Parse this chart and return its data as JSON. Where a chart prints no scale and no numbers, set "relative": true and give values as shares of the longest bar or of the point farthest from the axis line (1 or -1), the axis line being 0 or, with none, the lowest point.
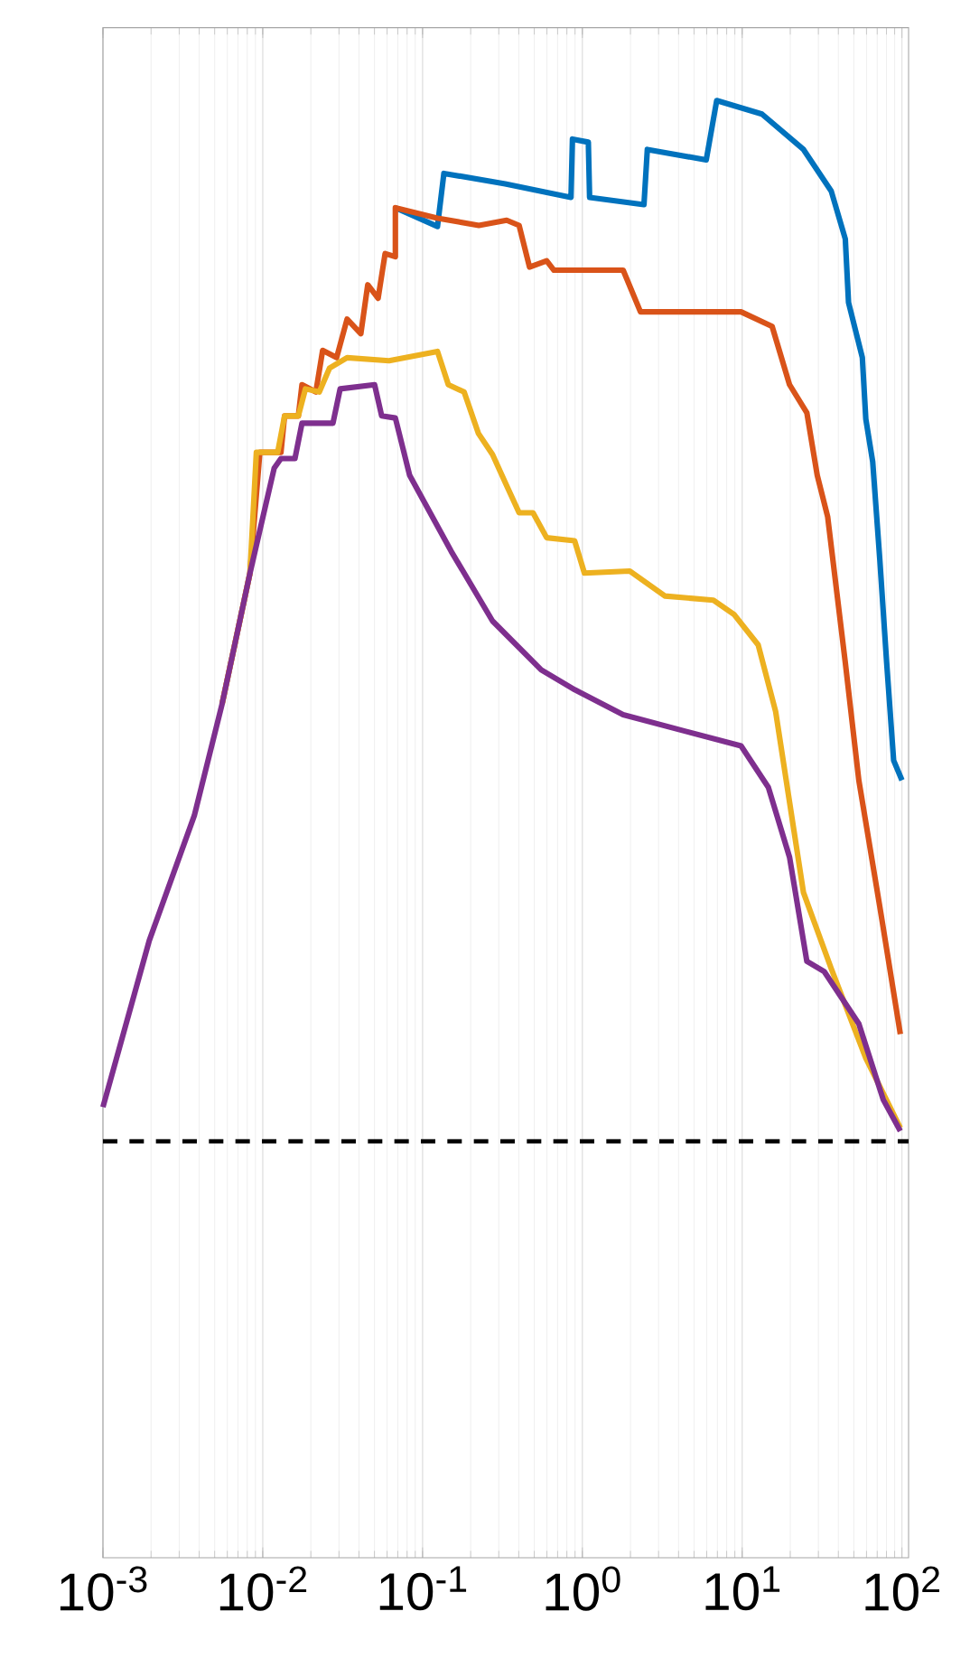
{
  "chart_data": {
    "type": "line",
    "relative": true,
    "log": "x",
    "grid": "x",
    "tick_labels": "x",
    "line_style": "solid",
    "xlim": [
      0.001,
      110
    ],
    "xticks": [
      {
        "value": 0.001,
        "label": "10$^{-3}$"
      },
      {
        "value": 0.01,
        "label": "10$^{-2}$"
      },
      {
        "value": 0.1,
        "label": "10$^{-1}$"
      },
      {
        "value": 1,
        "label": "10$^{0}$"
      },
      {
        "value": 10,
        "label": "10$^{1}$"
      },
      {
        "value": 100,
        "label": "10$^{2}$"
      }
    ],
    "ref_lines": [
      {
        "axis": "y",
        "value": 0,
        "color": "#000000",
        "line_style": "dashed"
      }
    ],
    "series": [
      {
        "color": "#0072bd",
        "x": [
          0.0676,
          0.124,
          0.136,
          0.329,
          0.849,
          0.867,
          1.09,
          1.11,
          2.43,
          2.55,
          5.96,
          6.93,
          13.3,
          24.2,
          36.1,
          44.2,
          46.3,
          56.5,
          59.4,
          65.6,
          72.6,
          80.2,
          88.7,
          100
        ],
        "values": [
          0.897,
          0.879,
          0.93,
          0.92,
          0.907,
          0.963,
          0.96,
          0.907,
          0.9,
          0.953,
          0.943,
          1.0,
          0.987,
          0.953,
          0.913,
          0.867,
          0.806,
          0.753,
          0.694,
          0.653,
          0.56,
          0.46,
          0.366,
          0.347
        ]
      },
      {
        "color": "#d95319",
        "x": [
          0.00556,
          0.00832,
          0.00959,
          0.013,
          0.0137,
          0.0167,
          0.0176,
          0.0215,
          0.0237,
          0.029,
          0.0337,
          0.0411,
          0.0454,
          0.0527,
          0.0583,
          0.0676,
          0.0676,
          0.124,
          0.225,
          0.336,
          0.402,
          0.467,
          0.598,
          0.664,
          1.8,
          2.31,
          9.84,
          15.4,
          19.8,
          25.4,
          29.5,
          34.3,
          44.2,
          53.7,
          72.6,
          97.7
        ],
        "values": [
          0.42,
          0.546,
          0.662,
          0.662,
          0.697,
          0.697,
          0.727,
          0.72,
          0.76,
          0.753,
          0.79,
          0.776,
          0.823,
          0.81,
          0.853,
          0.85,
          0.897,
          0.887,
          0.88,
          0.885,
          0.88,
          0.84,
          0.846,
          0.837,
          0.837,
          0.797,
          0.797,
          0.783,
          0.727,
          0.7,
          0.64,
          0.6,
          0.46,
          0.347,
          0.226,
          0.103
        ]
      },
      {
        "color": "#edb120",
        "x": [
          0.00556,
          0.00832,
          0.00912,
          0.0124,
          0.0137,
          0.0167,
          0.0185,
          0.0226,
          0.0262,
          0.0337,
          0.0617,
          0.124,
          0.145,
          0.182,
          0.224,
          0.274,
          0.336,
          0.402,
          0.491,
          0.598,
          0.895,
          1.03,
          1.98,
          3.28,
          6.61,
          8.93,
          12.6,
          16.2,
          19.8,
          24.2,
          36.1,
          59.4,
          97.7
        ],
        "values": [
          0.42,
          0.546,
          0.662,
          0.662,
          0.697,
          0.697,
          0.723,
          0.72,
          0.743,
          0.753,
          0.75,
          0.759,
          0.727,
          0.72,
          0.68,
          0.66,
          0.63,
          0.604,
          0.604,
          0.58,
          0.577,
          0.546,
          0.548,
          0.524,
          0.52,
          0.506,
          0.477,
          0.413,
          0.326,
          0.239,
          0.166,
          0.08,
          0.013
        ]
      },
      {
        "color": "#7e2f8e",
        "x": [
          0.001,
          0.00195,
          0.00373,
          0.00556,
          0.00832,
          0.0118,
          0.013,
          0.0159,
          0.0176,
          0.0275,
          0.0305,
          0.0501,
          0.0555,
          0.0676,
          0.083,
          0.151,
          0.274,
          0.553,
          0.895,
          1.8,
          4.43,
          9.84,
          14.6,
          19.8,
          25.4,
          32.7,
          53.7,
          76.4,
          97.7
        ],
        "values": [
          0.033,
          0.193,
          0.313,
          0.42,
          0.546,
          0.647,
          0.656,
          0.656,
          0.69,
          0.69,
          0.723,
          0.727,
          0.697,
          0.695,
          0.64,
          0.567,
          0.5,
          0.453,
          0.434,
          0.41,
          0.394,
          0.38,
          0.34,
          0.273,
          0.173,
          0.163,
          0.113,
          0.04,
          0.01
        ]
      }
    ]
  }
}
